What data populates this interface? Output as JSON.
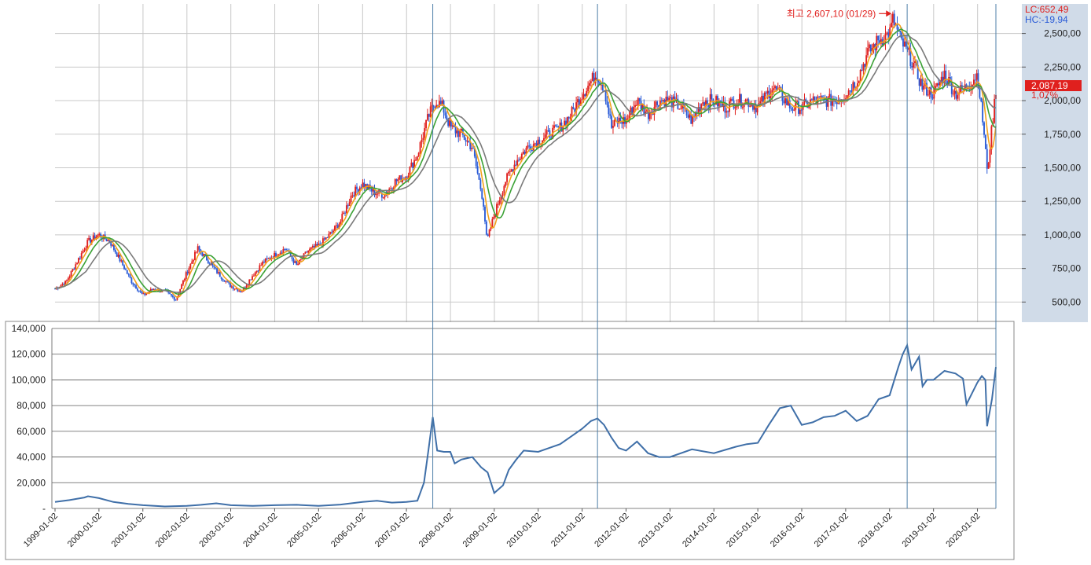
{
  "chart_data": [
    {
      "type": "line",
      "panel": "price",
      "y_axis_side": "right",
      "yticks": [
        "500,00",
        "750,00",
        "1,000,00",
        "1,250,00",
        "1,500,00",
        "1,750,00",
        "2,000,00",
        "2,250,00",
        "2,500,00"
      ],
      "ylim": [
        350,
        2720
      ],
      "grid": true,
      "readouts": {
        "lc": "LC:652,49",
        "hc": "HC:-19,94",
        "current_price": "2,087,19",
        "current_change": "1,07%"
      },
      "annotation": {
        "text": "최고 2,607,10 (01/29)",
        "x": 2018.08,
        "y": 2607.1
      },
      "series": [
        {
          "values_x": [
            1999.0,
            1999.25,
            1999.5,
            1999.75,
            2000.0,
            2000.25,
            2000.5,
            2000.75,
            2001.0,
            2001.25,
            2001.5,
            2001.75,
            2002.0,
            2002.25,
            2002.5,
            2002.75,
            2003.0,
            2003.25,
            2003.5,
            2003.75,
            2004.0,
            2004.25,
            2004.5,
            2004.75,
            2005.0,
            2005.25,
            2005.5,
            2005.75,
            2006.0,
            2006.25,
            2006.5,
            2006.75,
            2007.0,
            2007.25,
            2007.5,
            2007.67,
            2007.83,
            2008.0,
            2008.25,
            2008.5,
            2008.75,
            2008.83,
            2009.0,
            2009.25,
            2009.5,
            2009.75,
            2010.0,
            2010.25,
            2010.5,
            2010.75,
            2011.0,
            2011.33,
            2011.5,
            2011.67,
            2011.83,
            2012.0,
            2012.25,
            2012.5,
            2012.75,
            2013.0,
            2013.25,
            2013.5,
            2013.75,
            2014.0,
            2014.25,
            2014.5,
            2014.75,
            2015.0,
            2015.33,
            2015.5,
            2015.75,
            2016.0,
            2016.25,
            2016.5,
            2016.75,
            2017.0,
            2017.25,
            2017.5,
            2017.75,
            2018.0,
            2018.08,
            2018.25,
            2018.5,
            2018.75,
            2019.0,
            2019.25,
            2019.5,
            2019.75,
            2020.0,
            2020.17,
            2020.22,
            2020.33,
            2020.42
          ],
          "values_y": [
            600,
            650,
            800,
            950,
            1000,
            950,
            800,
            650,
            550,
            600,
            580,
            520,
            720,
            900,
            800,
            700,
            620,
            580,
            700,
            800,
            850,
            900,
            770,
            880,
            920,
            1000,
            1100,
            1300,
            1380,
            1320,
            1300,
            1400,
            1440,
            1600,
            1880,
            2000,
            1950,
            1800,
            1750,
            1650,
            1250,
            950,
            1150,
            1400,
            1550,
            1650,
            1700,
            1750,
            1800,
            1900,
            2050,
            2200,
            2100,
            1800,
            1850,
            1850,
            2000,
            1900,
            2000,
            2000,
            1950,
            1850,
            2000,
            2000,
            1950,
            2000,
            2000,
            1950,
            2100,
            2050,
            1950,
            1950,
            2000,
            2000,
            2000,
            2050,
            2150,
            2350,
            2450,
            2500,
            2607,
            2450,
            2300,
            2100,
            2050,
            2200,
            2050,
            2100,
            2200,
            1700,
            1460,
            1800,
            2087
          ]
        }
      ]
    },
    {
      "type": "line",
      "panel": "indicator",
      "yticks": [
        "-",
        "20,000",
        "40,000",
        "60,000",
        "80,000",
        "100,000",
        "120,000",
        "140,000"
      ],
      "ylim": [
        0,
        140000
      ],
      "grid": true,
      "xticks": [
        "1999-01-02",
        "2000-01-02",
        "2001-01-02",
        "2002-01-02",
        "2003-01-02",
        "2004-01-02",
        "2005-01-02",
        "2006-01-02",
        "2007-01-02",
        "2008-01-02",
        "2009-01-02",
        "2010-01-02",
        "2011-01-02",
        "2012-01-02",
        "2013-01-02",
        "2014-01-02",
        "2015-01-02",
        "2016-01-02",
        "2017-01-02",
        "2018-01-02",
        "2019-01-02",
        "2020-01-02"
      ],
      "vertical_markers": [
        2007.6,
        2011.35,
        2018.4,
        2020.42
      ],
      "series": [
        {
          "color": "#3f6fa8",
          "x": [
            1999.0,
            1999.33,
            1999.67,
            1999.75,
            2000.0,
            2000.33,
            2000.67,
            2001.0,
            2001.5,
            2002.0,
            2002.33,
            2002.67,
            2003.0,
            2003.5,
            2004.0,
            2004.5,
            2005.0,
            2005.5,
            2006.0,
            2006.33,
            2006.67,
            2007.0,
            2007.25,
            2007.4,
            2007.5,
            2007.6,
            2007.7,
            2007.85,
            2008.0,
            2008.1,
            2008.25,
            2008.5,
            2008.7,
            2008.85,
            2009.0,
            2009.2,
            2009.33,
            2009.5,
            2009.67,
            2010.0,
            2010.25,
            2010.5,
            2010.75,
            2011.0,
            2011.2,
            2011.35,
            2011.5,
            2011.67,
            2011.83,
            2012.0,
            2012.25,
            2012.5,
            2012.75,
            2013.0,
            2013.5,
            2014.0,
            2014.5,
            2014.75,
            2015.0,
            2015.25,
            2015.5,
            2015.75,
            2016.0,
            2016.25,
            2016.5,
            2016.75,
            2017.0,
            2017.25,
            2017.5,
            2017.75,
            2018.0,
            2018.2,
            2018.3,
            2018.4,
            2018.5,
            2018.67,
            2018.75,
            2018.85,
            2019.0,
            2019.25,
            2019.5,
            2019.67,
            2019.75,
            2020.0,
            2020.1,
            2020.18,
            2020.22,
            2020.33,
            2020.42
          ],
          "y": [
            5000,
            6500,
            8500,
            9500,
            8000,
            5000,
            3500,
            2500,
            1500,
            2000,
            2800,
            4000,
            2500,
            2000,
            2500,
            2800,
            2000,
            3000,
            5000,
            6000,
            4500,
            5000,
            6000,
            20000,
            45000,
            71000,
            45000,
            44000,
            44000,
            35000,
            38000,
            40000,
            32000,
            28000,
            12000,
            18000,
            30000,
            38000,
            45000,
            44000,
            47000,
            50000,
            56000,
            62000,
            68000,
            70000,
            65000,
            55000,
            47000,
            45000,
            52000,
            43000,
            40000,
            40000,
            46000,
            43000,
            48000,
            50000,
            51000,
            65000,
            78000,
            80000,
            65000,
            67000,
            71000,
            72000,
            76000,
            68000,
            72000,
            85000,
            88000,
            110000,
            120000,
            127000,
            108000,
            118000,
            95000,
            100000,
            100000,
            107000,
            105000,
            101000,
            81000,
            98000,
            103000,
            100000,
            64000,
            85000,
            110000
          ]
        }
      ]
    }
  ],
  "colors": {
    "grid": "#c8c8c8",
    "right_axis_bg": "#d0dbe8",
    "marker_line": "#4f7fa8",
    "lc_color": "#e0201e",
    "hc_color": "#2a5bd7",
    "price_box": "#e0201e",
    "annotation": "#e0201e",
    "ma_fast": "#f2a21c",
    "ma_mid": "#3ba235",
    "ma_slow": "#7a7a7a",
    "candle_up": "#e0201e",
    "candle_down": "#2a5bd7"
  }
}
